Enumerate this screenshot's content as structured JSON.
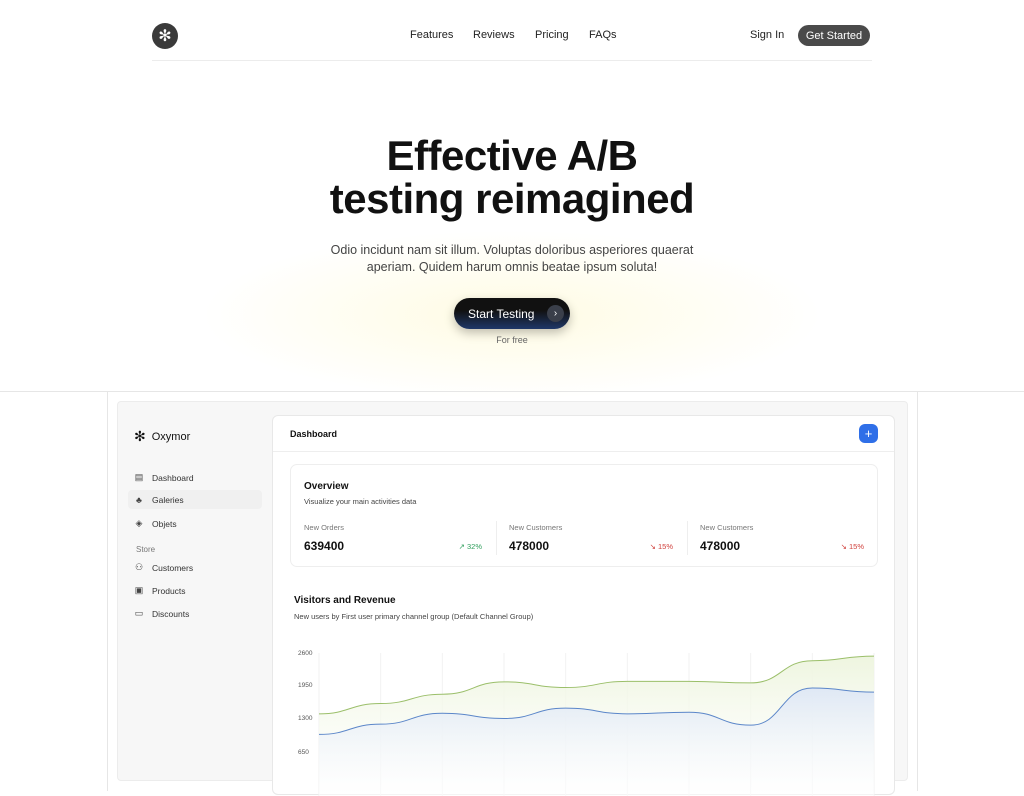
{
  "nav": {
    "logo_icon": "snowflake-icon",
    "links": [
      "Features",
      "Reviews",
      "Pricing",
      "FAQs"
    ],
    "sign_in": "Sign In",
    "get_started": "Get Started"
  },
  "hero": {
    "title_line1": "Effective A/B",
    "title_line2": "testing reimagined",
    "subtitle": "Odio incidunt nam sit illum. Voluptas doloribus asperiores quaerat aperiam. Quidem harum omnis beatae ipsum soluta!",
    "cta": "Start Testing",
    "cta_note": "For free"
  },
  "app": {
    "brand": "Oxymor",
    "sidebar": {
      "items": [
        {
          "label": "Dashboard",
          "icon": "layout-icon"
        },
        {
          "label": "Galeries",
          "icon": "shapes-icon"
        },
        {
          "label": "Objets",
          "icon": "tags-icon"
        }
      ],
      "section": "Store",
      "store_items": [
        {
          "label": "Customers",
          "icon": "users-icon"
        },
        {
          "label": "Products",
          "icon": "box-icon"
        },
        {
          "label": "Discounts",
          "icon": "ticket-icon"
        }
      ]
    },
    "header": {
      "title": "Dashboard",
      "add_icon": "plus-icon"
    },
    "overview": {
      "title": "Overview",
      "subtitle": "Visualize your main activities data",
      "metrics": [
        {
          "label": "New Orders",
          "value": "639400",
          "change": "32%",
          "trend": "up",
          "color": "#2e9e5b"
        },
        {
          "label": "New Customers",
          "value": "478000",
          "change": "15%",
          "trend": "down",
          "color": "#d0403c"
        },
        {
          "label": "New Customers",
          "value": "478000",
          "change": "15%",
          "trend": "down",
          "color": "#d0403c"
        }
      ]
    }
  },
  "chart_data": {
    "type": "area",
    "title": "Visitors and Revenue",
    "subtitle": "New users by First user primary channel group (Default Channel Group)",
    "yticks": [
      "2600",
      "1950",
      "1300",
      "650"
    ],
    "ylim": [
      650,
      2600
    ],
    "grid": "vertical",
    "x": [
      0,
      1,
      2,
      3,
      4,
      5,
      6,
      7,
      8,
      9
    ],
    "series": [
      {
        "color": "#9bbf6a",
        "fill": "#eef5df",
        "values": [
          1420,
          1620,
          1800,
          2040,
          1930,
          2050,
          2050,
          2020,
          2450,
          2540
        ]
      },
      {
        "color": "#5b86c9",
        "fill": "#dfe8f5",
        "values": [
          1020,
          1220,
          1430,
          1330,
          1530,
          1420,
          1450,
          1200,
          1920,
          1840
        ]
      }
    ]
  }
}
